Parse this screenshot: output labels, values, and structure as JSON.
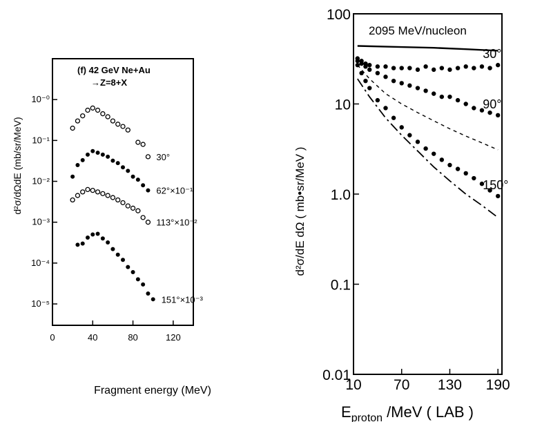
{
  "chart_data": [
    {
      "type": "scatter",
      "panel_label": "(f) 42 GeV Ne+Au",
      "reaction": "→Z=8+X",
      "xlabel": "Fragment energy (MeV)",
      "ylabel": "d²σ/dΩdE (mb/sr/MeV)",
      "xlim": [
        0,
        140
      ],
      "ylim": [
        3e-06,
        10
      ],
      "yscale": "log",
      "x_ticks": [
        0,
        40,
        80,
        120
      ],
      "x_tick_labels": [
        "0",
        "40",
        "80",
        "120"
      ],
      "y_ticks": [
        1,
        0.1,
        0.01,
        0.001,
        0.0001,
        1e-05
      ],
      "y_tick_labels": [
        "10⁻⁰",
        "10⁻¹",
        "10⁻²",
        "10⁻³",
        "10⁻⁴",
        "10⁻⁵"
      ],
      "grid": false,
      "series": [
        {
          "name": "30°",
          "marker": "open",
          "x": [
            20,
            25,
            30,
            35,
            40,
            45,
            50,
            55,
            60,
            65,
            70,
            75,
            85,
            90,
            95
          ],
          "y": [
            0.2,
            0.3,
            0.4,
            0.55,
            0.62,
            0.55,
            0.45,
            0.38,
            0.3,
            0.25,
            0.22,
            0.18,
            0.09,
            0.08,
            0.04
          ]
        },
        {
          "name": "62°×10⁻¹",
          "marker": "filled",
          "x": [
            20,
            25,
            30,
            35,
            40,
            45,
            50,
            55,
            60,
            65,
            70,
            75,
            80,
            85,
            90,
            95
          ],
          "y": [
            0.013,
            0.025,
            0.033,
            0.045,
            0.055,
            0.05,
            0.045,
            0.04,
            0.032,
            0.028,
            0.022,
            0.018,
            0.013,
            0.011,
            0.008,
            0.006
          ]
        },
        {
          "name": "113°×10⁻²",
          "marker": "open",
          "x": [
            20,
            25,
            30,
            35,
            40,
            45,
            50,
            55,
            60,
            65,
            70,
            75,
            80,
            85,
            90,
            95
          ],
          "y": [
            0.0035,
            0.0045,
            0.0055,
            0.0063,
            0.006,
            0.0055,
            0.005,
            0.0045,
            0.004,
            0.0035,
            0.003,
            0.0025,
            0.0022,
            0.0019,
            0.0013,
            0.001
          ]
        },
        {
          "name": "151°×10⁻³",
          "marker": "filled",
          "x": [
            25,
            30,
            35,
            40,
            45,
            50,
            55,
            60,
            65,
            70,
            75,
            80,
            85,
            90,
            95,
            100
          ],
          "y": [
            0.00028,
            0.0003,
            0.00042,
            0.0005,
            0.00052,
            0.0004,
            0.00032,
            0.00022,
            0.00016,
            0.00012,
            8e-05,
            6e-05,
            4e-05,
            3e-05,
            1.8e-05,
            1.3e-05
          ]
        }
      ]
    },
    {
      "type": "scatter",
      "annotation": "2095 MeV/nucleon",
      "xlabel_main": "E",
      "xlabel_sub": "proton",
      "xlabel_rest": "/MeV ( LAB )",
      "ylabel": "d²σ/dE dΩ ( mb•sr/MeV )",
      "xlim": [
        10,
        195
      ],
      "ylim": [
        0.01,
        100
      ],
      "yscale": "log",
      "x_ticks": [
        10,
        70,
        130,
        190
      ],
      "x_tick_labels": [
        "10",
        "70",
        "130",
        "190"
      ],
      "y_ticks": [
        100,
        10,
        1,
        0.1,
        0.01
      ],
      "y_tick_labels": [
        "100",
        "10",
        "1.0",
        "0.1",
        "0.01"
      ],
      "grid": false,
      "series": [
        {
          "name": "30°",
          "marker": "filled",
          "x": [
            15,
            20,
            25,
            30,
            40,
            50,
            60,
            70,
            80,
            90,
            100,
            110,
            120,
            130,
            140,
            150,
            160,
            170,
            180,
            190
          ],
          "y": [
            32,
            30,
            28,
            27,
            26,
            26,
            25,
            25,
            25,
            24,
            26,
            24,
            25,
            24,
            25,
            26,
            25,
            26,
            25,
            27
          ]
        },
        {
          "name": "90°",
          "marker": "filled",
          "x": [
            15,
            20,
            25,
            30,
            40,
            50,
            60,
            70,
            80,
            90,
            100,
            110,
            120,
            130,
            140,
            150,
            160,
            170,
            180,
            190
          ],
          "y": [
            30,
            28,
            26,
            24,
            22,
            20,
            18,
            17,
            16,
            15,
            14,
            13,
            12,
            12,
            11,
            10,
            9,
            8.5,
            8,
            7.5
          ]
        },
        {
          "name": "150°",
          "marker": "filled",
          "x": [
            15,
            20,
            25,
            30,
            40,
            50,
            60,
            70,
            80,
            90,
            100,
            110,
            120,
            130,
            140,
            150,
            160,
            170,
            180,
            190
          ],
          "y": [
            27,
            22,
            18,
            15,
            11,
            9,
            7,
            5.5,
            4.5,
            3.8,
            3.2,
            2.8,
            2.4,
            2.1,
            1.9,
            1.7,
            1.5,
            1.3,
            1.1,
            0.95
          ]
        },
        {
          "name": "",
          "marker": "solid-line",
          "x": [
            15,
            60,
            110,
            150,
            190
          ],
          "y": [
            44,
            43,
            42,
            40.5,
            39
          ]
        },
        {
          "name": "",
          "marker": "dashed-line",
          "x": [
            15,
            30,
            50,
            70,
            90,
            110,
            130,
            150,
            170,
            190
          ],
          "y": [
            27,
            19,
            13,
            10,
            8,
            6.5,
            5.3,
            4.4,
            3.7,
            3.1
          ]
        },
        {
          "name": "",
          "marker": "dash-dot-line",
          "x": [
            15,
            30,
            50,
            70,
            90,
            110,
            130,
            150,
            170,
            190
          ],
          "y": [
            19,
            12,
            7,
            4.5,
            3.0,
            2.0,
            1.4,
            1.0,
            0.75,
            0.55
          ]
        }
      ]
    }
  ]
}
